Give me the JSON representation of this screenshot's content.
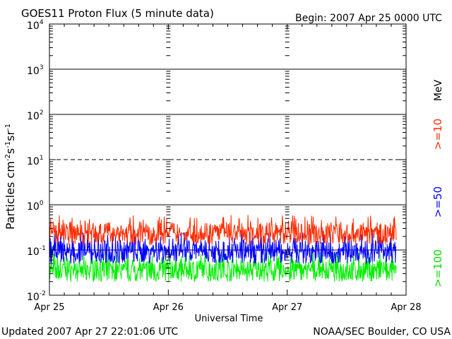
{
  "header": {
    "title": "GOES11 Proton Flux (5 minute data)",
    "begin": "Begin: 2007 Apr 25 0000 UTC"
  },
  "footer": {
    "updated": "Updated 2007 Apr 27 22:01:06 UTC",
    "credit": "NOAA/SEC Boulder, CO USA"
  },
  "colors": {
    "ge10": "#ff2a00",
    "ge50": "#0000ff",
    "ge100": "#00ee00",
    "axis": "#000000"
  },
  "chart_data": {
    "type": "line",
    "title": "GOES11 Proton Flux (5 minute data)",
    "xlabel": "Universal Time",
    "ylabel": "Particles cm⁻²s⁻¹sr⁻¹",
    "ylabel_parts": {
      "base": "Particles cm",
      "e1": "-2",
      "s": "s",
      "e2": "-1",
      "sr": "sr",
      "e3": "-1"
    },
    "y_scale": "log",
    "ylim": [
      0.01,
      10000
    ],
    "y_ticks": [
      {
        "value": 0.01,
        "base": "10",
        "exp": "-2"
      },
      {
        "value": 0.1,
        "base": "10",
        "exp": "-1"
      },
      {
        "value": 1,
        "base": "10",
        "exp": "0"
      },
      {
        "value": 10,
        "base": "10",
        "exp": "1"
      },
      {
        "value": 100,
        "base": "10",
        "exp": "2"
      },
      {
        "value": 1000,
        "base": "10",
        "exp": "3"
      },
      {
        "value": 10000,
        "base": "10",
        "exp": "4"
      }
    ],
    "xlim": [
      "2007-04-25",
      "2007-04-28"
    ],
    "x_ticks": [
      {
        "date": "2007-04-25",
        "label": "Apr 25"
      },
      {
        "date": "2007-04-26",
        "label": "Apr 26"
      },
      {
        "date": "2007-04-27",
        "label": "Apr 27"
      },
      {
        "date": "2007-04-28",
        "label": "Apr 28"
      }
    ],
    "data_end": "2007-04-27 22:00",
    "threshold_lines": [
      {
        "value": 10,
        "style": "dashed"
      },
      {
        "value": 100,
        "style": "solid"
      },
      {
        "value": 1000,
        "style": "solid"
      },
      {
        "value": 1,
        "style": "solid"
      },
      {
        "value": 0.1,
        "style": "solid"
      }
    ],
    "legend": {
      "placement": "right",
      "unit": "MeV",
      "entries": [
        {
          "label": ">=10",
          "color": "#ff2a00"
        },
        {
          "label": ">=50",
          "color": "#0000ff"
        },
        {
          "label": ">=100",
          "color": "#00ee00"
        }
      ]
    },
    "series": [
      {
        "name": ">=10",
        "color": "#ff2a00",
        "typical_range": [
          0.13,
          0.6
        ]
      },
      {
        "name": ">=50",
        "color": "#0000ff",
        "typical_range": [
          0.05,
          0.25
        ]
      },
      {
        "name": ">=100",
        "color": "#00ee00",
        "typical_range": [
          0.02,
          0.09
        ]
      }
    ]
  }
}
